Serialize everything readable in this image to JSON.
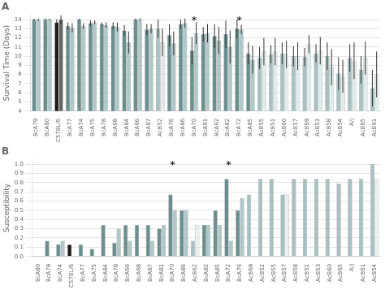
{
  "chart_data": [
    {
      "type": "bar",
      "title": "A",
      "ylabel": "Survival Time (Days)",
      "categories": [
        "BcA79",
        "BcA80",
        "C57BL/6",
        "BcA77",
        "BcA74",
        "BcA75",
        "BcA78",
        "BcA68",
        "BcA84",
        "BcA66",
        "BcA87",
        "AcB52",
        "BcA76",
        "BcA86",
        "BcA70",
        "BcA81",
        "BcA62",
        "BcA82",
        "BcA72",
        "BcA85",
        "AcB55",
        "AcB51",
        "AcB60",
        "AcB57",
        "AcB69",
        "AcB53",
        "AcB58",
        "AcB54",
        "A/J",
        "AcB65",
        "AcB61"
      ],
      "series": [
        {
          "colors": [
            "#6b8f8f",
            "#6b8f8f",
            "#1c1c1c",
            "#6b8f8f",
            "#6b8f8f",
            "#6b8f8f",
            "#6b8f8f",
            "#6b8f8f",
            "#6b8f8f",
            "#6b8f8f",
            "#6b8f8f",
            "#a8c0c0",
            "#6b8f8f",
            "#6b8f8f",
            "#6b8f8f",
            "#6b8f8f",
            "#6b8f8f",
            "#6b8f8f",
            "#6b8f8f",
            "#6b8f8f",
            "#a8c0c0",
            "#a8c0c0",
            "#a8c0c0",
            "#a8c0c0",
            "#a8c0c0",
            "#a8c0c0",
            "#a8c0c0",
            "#a8c0c0",
            "#a8c0c0",
            "#a8c0c0",
            "#a8c0c0"
          ],
          "values": [
            14.0,
            14.0,
            13.7,
            13.3,
            14.0,
            13.6,
            13.5,
            13.3,
            12.8,
            14.0,
            12.9,
            13.0,
            12.3,
            13.5,
            10.6,
            12.4,
            12.2,
            12.4,
            13.0,
            10.3,
            9.8,
            10.2,
            10.3,
            10.0,
            9.9,
            10.3,
            10.0,
            8.1,
            9.8,
            8.5,
            6.5
          ],
          "errors": [
            0.1,
            0.1,
            0.3,
            0.4,
            0.1,
            0.3,
            0.2,
            0.4,
            0.6,
            0.1,
            0.6,
            1.0,
            1.2,
            0.5,
            1.5,
            0.8,
            1.3,
            1.5,
            1.0,
            1.2,
            1.2,
            1.0,
            1.2,
            1.1,
            1.0,
            1.0,
            1.5,
            1.8,
            1.5,
            1.5,
            2.0
          ]
        },
        {
          "colors": [
            "#b0c8c8",
            "#b0c8c8",
            "#646464",
            "#b0c8c8",
            "#b0c8c8",
            "#b0c8c8",
            "#b0c8c8",
            "#b0c8c8",
            "#b0c8c8",
            "#b0c8c8",
            "#b0c8c8",
            "#e0ecec",
            "#b0c8c8",
            "#b0c8c8",
            "#b0c8c8",
            "#b0c8c8",
            "#b0c8c8",
            "#b0c8c8",
            "#b0c8c8",
            "#b0c8c8",
            "#e0ecec",
            "#e0ecec",
            "#e0ecec",
            "#e0ecec",
            "#e0ecec",
            "#e0ecec",
            "#e0ecec",
            "#e0ecec",
            "#e0ecec",
            "#e0ecec",
            "#e0ecec"
          ],
          "values": [
            14.0,
            14.0,
            14.0,
            13.1,
            13.3,
            13.7,
            13.4,
            13.2,
            11.5,
            14.0,
            13.0,
            11.5,
            11.4,
            13.6,
            12.5,
            12.5,
            11.7,
            11.0,
            12.9,
            9.6,
            10.5,
            10.5,
            10.2,
            10.0,
            11.3,
            10.6,
            8.8,
            7.8,
            9.5,
            9.8,
            8.0
          ],
          "errors": [
            0.1,
            0.1,
            0.5,
            0.5,
            0.3,
            0.2,
            0.3,
            0.5,
            1.2,
            0.1,
            0.5,
            1.5,
            1.3,
            0.5,
            1.2,
            1.0,
            1.5,
            1.8,
            0.5,
            1.5,
            1.5,
            1.5,
            1.5,
            1.5,
            1.0,
            1.5,
            2.0,
            1.8,
            2.0,
            1.8,
            2.5
          ]
        }
      ],
      "ylim": [
        4,
        14.5
      ],
      "yticks": [
        4,
        5,
        6,
        7,
        8,
        9,
        10,
        11,
        12,
        13,
        14
      ],
      "grid": true,
      "annotations": [
        {
          "text": "*",
          "x": "BcA70"
        },
        {
          "text": "*",
          "x": "BcA72"
        }
      ]
    },
    {
      "type": "bar",
      "title": "B",
      "ylabel": "Susceptibility",
      "categories": [
        "BcA80",
        "BcA79",
        "BcA74",
        "C57BL/6",
        "BcA77",
        "BcA75",
        "BcA84",
        "BcA78",
        "BcA66",
        "BcA68",
        "BcA87",
        "BcA81",
        "BcA70",
        "BcA86",
        "AcB62",
        "BcA82",
        "BcA85",
        "BcA72",
        "BcA76",
        "AcB69",
        "AcB52",
        "AcB55",
        "AcB57",
        "AcB58",
        "AcB51",
        "AcB53",
        "AcB60",
        "AcB65",
        "A/J",
        "AcB61",
        "AcB54"
      ],
      "series": [
        {
          "colors": [
            "#6b8f8f",
            "#6b8f8f",
            "#6b8f8f",
            "#1c1c1c",
            "#6b8f8f",
            "#6b8f8f",
            "#6b8f8f",
            "#6b8f8f",
            "#6b8f8f",
            "#6b8f8f",
            "#6b8f8f",
            "#6b8f8f",
            "#6b8f8f",
            "#6b8f8f",
            "#a8c0c0",
            "#6b8f8f",
            "#6b8f8f",
            "#6b8f8f",
            "#6b8f8f",
            "#a8c0c0",
            "#a8c0c0",
            "#a8c0c0",
            "#a8c0c0",
            "#a8c0c0",
            "#a8c0c0",
            "#a8c0c0",
            "#a8c0c0",
            "#a8c0c0",
            "#a8c0c0",
            "#a8c0c0",
            "#a8c0c0"
          ],
          "values": [
            0.0,
            0.17,
            0.13,
            0.13,
            0.13,
            0.08,
            0.34,
            0.15,
            0.34,
            0.34,
            0.34,
            0.3,
            0.67,
            0.5,
            0.17,
            0.34,
            0.5,
            0.84,
            0.5,
            0.67,
            0.84,
            0.84,
            0.67,
            0.84,
            0.84,
            0.84,
            0.84,
            0.79,
            0.84,
            0.84,
            1.0
          ]
        },
        {
          "colors": [
            "#b0c8c8",
            "#b0c8c8",
            "#b0c8c8",
            "#646464",
            "#b0c8c8",
            "#b0c8c8",
            "#b0c8c8",
            "#b0c8c8",
            "#b0c8c8",
            "#b0c8c8",
            "#b0c8c8",
            "#b0c8c8",
            "#b0c8c8",
            "#b0c8c8",
            "#e8f0f0",
            "#b0c8c8",
            "#b0c8c8",
            "#b0c8c8",
            "#b0c8c8",
            "#e8f0f0",
            "#e8f0f0",
            "#e8f0f0",
            "#e8f0f0",
            "#e8f0f0",
            "#e8f0f0",
            "#e8f0f0",
            "#e8f0f0",
            "#e8f0f0",
            "#e8f0f0",
            "#e8f0f0",
            "#e8f0f0"
          ],
          "values": [
            0.0,
            0.0,
            0.17,
            0.0,
            0.0,
            0.0,
            0.0,
            0.3,
            0.17,
            0.0,
            0.17,
            0.34,
            0.5,
            0.5,
            0.34,
            0.34,
            0.34,
            0.17,
            0.63,
            0.0,
            0.0,
            0.0,
            0.67,
            0.0,
            0.0,
            0.0,
            0.0,
            0.0,
            0.0,
            0.0,
            0.84
          ]
        }
      ],
      "ylim": [
        0,
        1.05
      ],
      "yticks": [
        {
          "value": 0,
          "label": "0.0"
        },
        0.1,
        0.2,
        0.3,
        0.4,
        0.5,
        0.6,
        0.7,
        0.8,
        0.9,
        {
          "value": 1,
          "label": "1.0"
        }
      ],
      "grid": true,
      "annotations": [
        {
          "text": "*",
          "x": "BcA70"
        },
        {
          "text": "*",
          "x": "BcA72"
        }
      ]
    }
  ]
}
